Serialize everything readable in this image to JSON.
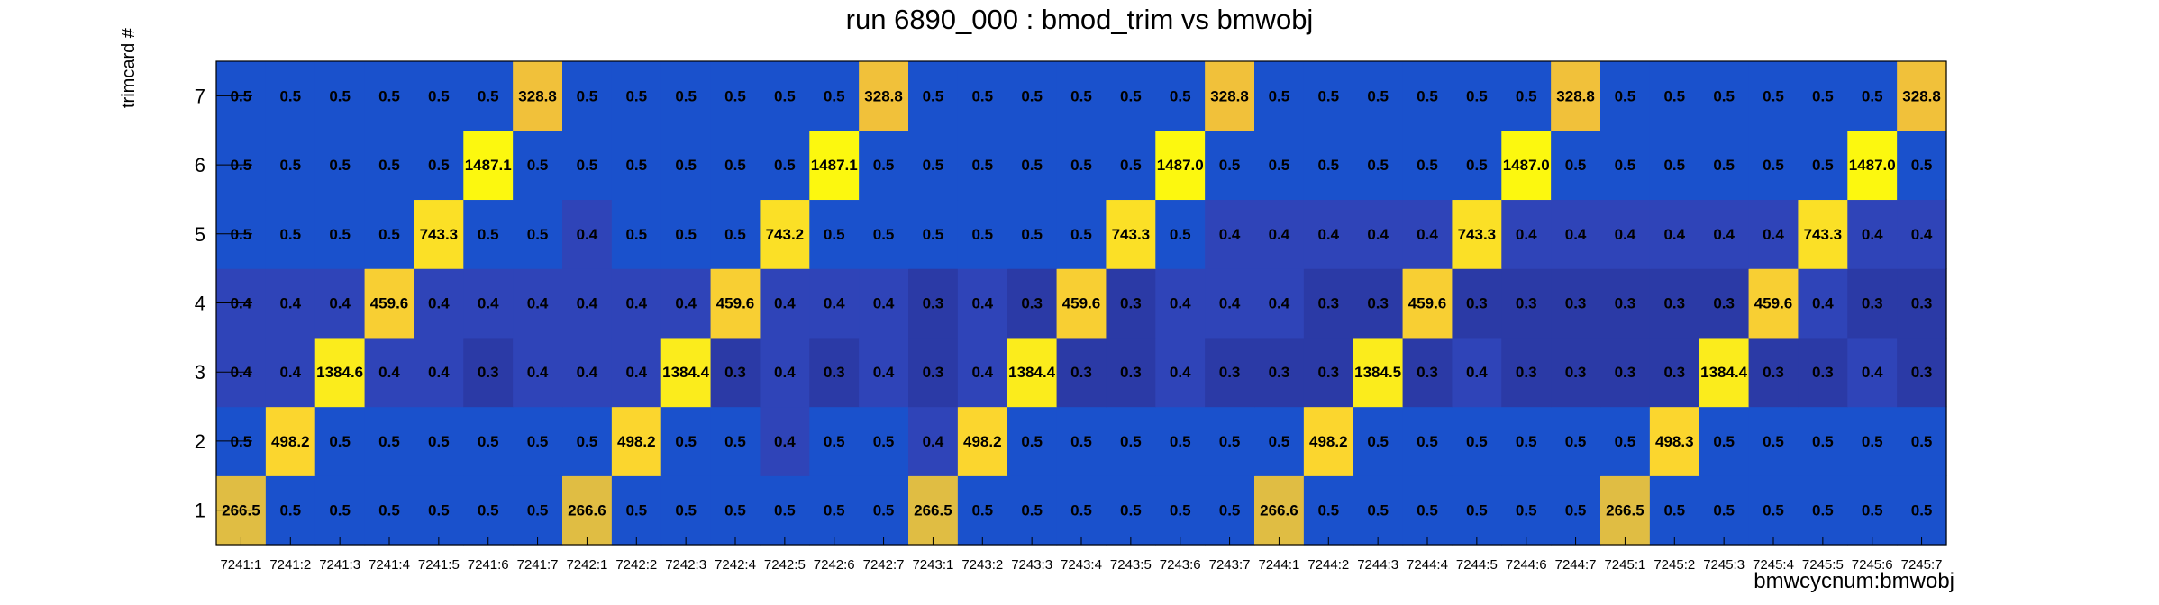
{
  "chart_data": {
    "type": "heatmap",
    "title": "run 6890_000 : bmod_trim vs bmwobj",
    "xlabel": "bmwcycnum:bmwobj",
    "ylabel": "trimcard #",
    "x_categories": [
      "7241:1",
      "7241:2",
      "7241:3",
      "7241:4",
      "7241:5",
      "7241:6",
      "7241:7",
      "7242:1",
      "7242:2",
      "7242:3",
      "7242:4",
      "7242:5",
      "7242:6",
      "7242:7",
      "7243:1",
      "7243:2",
      "7243:3",
      "7243:4",
      "7243:5",
      "7243:6",
      "7243:7",
      "7244:1",
      "7244:2",
      "7244:3",
      "7244:4",
      "7244:5",
      "7244:6",
      "7244:7",
      "7245:1",
      "7245:2",
      "7245:3",
      "7245:4",
      "7245:5",
      "7245:6",
      "7245:7"
    ],
    "y_categories": [
      "1",
      "2",
      "3",
      "4",
      "5",
      "6",
      "7"
    ],
    "rows": [
      [
        "266.5",
        "0.5",
        "0.5",
        "0.5",
        "0.5",
        "0.5",
        "0.5",
        "266.6",
        "0.5",
        "0.5",
        "0.5",
        "0.5",
        "0.5",
        "0.5",
        "266.5",
        "0.5",
        "0.5",
        "0.5",
        "0.5",
        "0.5",
        "0.5",
        "266.6",
        "0.5",
        "0.5",
        "0.5",
        "0.5",
        "0.5",
        "0.5",
        "266.5",
        "0.5",
        "0.5",
        "0.5",
        "0.5",
        "0.5",
        "0.5"
      ],
      [
        "0.5",
        "498.2",
        "0.5",
        "0.5",
        "0.5",
        "0.5",
        "0.5",
        "0.5",
        "498.2",
        "0.5",
        "0.5",
        "0.4",
        "0.5",
        "0.5",
        "0.4",
        "498.2",
        "0.5",
        "0.5",
        "0.5",
        "0.5",
        "0.5",
        "0.5",
        "498.2",
        "0.5",
        "0.5",
        "0.5",
        "0.5",
        "0.5",
        "0.5",
        "498.3",
        "0.5",
        "0.5",
        "0.5",
        "0.5",
        "0.5"
      ],
      [
        "0.4",
        "0.4",
        "1384.6",
        "0.4",
        "0.4",
        "0.3",
        "0.4",
        "0.4",
        "0.4",
        "1384.4",
        "0.3",
        "0.4",
        "0.3",
        "0.4",
        "0.3",
        "0.4",
        "1384.4",
        "0.3",
        "0.3",
        "0.4",
        "0.3",
        "0.3",
        "0.3",
        "1384.5",
        "0.3",
        "0.4",
        "0.3",
        "0.3",
        "0.3",
        "0.3",
        "1384.4",
        "0.3",
        "0.3",
        "0.4",
        "0.3"
      ],
      [
        "0.4",
        "0.4",
        "0.4",
        "459.6",
        "0.4",
        "0.4",
        "0.4",
        "0.4",
        "0.4",
        "0.4",
        "459.6",
        "0.4",
        "0.4",
        "0.4",
        "0.3",
        "0.4",
        "0.3",
        "459.6",
        "0.3",
        "0.4",
        "0.4",
        "0.4",
        "0.3",
        "0.3",
        "459.6",
        "0.3",
        "0.3",
        "0.3",
        "0.3",
        "0.3",
        "0.3",
        "459.6",
        "0.4",
        "0.3",
        "0.3"
      ],
      [
        "0.5",
        "0.5",
        "0.5",
        "0.5",
        "743.3",
        "0.5",
        "0.5",
        "0.4",
        "0.5",
        "0.5",
        "0.5",
        "743.2",
        "0.5",
        "0.5",
        "0.5",
        "0.5",
        "0.5",
        "0.5",
        "743.3",
        "0.5",
        "0.4",
        "0.4",
        "0.4",
        "0.4",
        "0.4",
        "743.3",
        "0.4",
        "0.4",
        "0.4",
        "0.4",
        "0.4",
        "0.4",
        "743.3",
        "0.4",
        "0.4"
      ],
      [
        "0.5",
        "0.5",
        "0.5",
        "0.5",
        "0.5",
        "1487.1",
        "0.5",
        "0.5",
        "0.5",
        "0.5",
        "0.5",
        "0.5",
        "1487.1",
        "0.5",
        "0.5",
        "0.5",
        "0.5",
        "0.5",
        "0.5",
        "1487.0",
        "0.5",
        "0.5",
        "0.5",
        "0.5",
        "0.5",
        "0.5",
        "1487.0",
        "0.5",
        "0.5",
        "0.5",
        "0.5",
        "0.5",
        "0.5",
        "1487.0",
        "0.5"
      ],
      [
        "0.5",
        "0.5",
        "0.5",
        "0.5",
        "0.5",
        "0.5",
        "328.8",
        "0.5",
        "0.5",
        "0.5",
        "0.5",
        "0.5",
        "0.5",
        "328.8",
        "0.5",
        "0.5",
        "0.5",
        "0.5",
        "0.5",
        "0.5",
        "328.8",
        "0.5",
        "0.5",
        "0.5",
        "0.5",
        "0.5",
        "0.5",
        "328.8",
        "0.5",
        "0.5",
        "0.5",
        "0.5",
        "0.5",
        "0.5",
        "328.8"
      ]
    ],
    "grid": false,
    "legend": "none"
  }
}
